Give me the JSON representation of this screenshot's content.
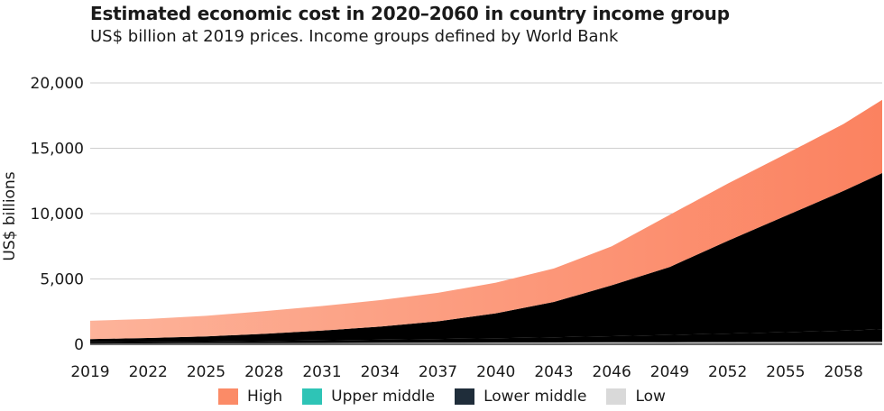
{
  "title": "Estimated economic cost in 2020–2060 in country income group",
  "subtitle": "US$ billion at 2019 prices. Income groups defined by World Bank",
  "chart_data": {
    "type": "area",
    "stacked": true,
    "ylabel": "US$ billions",
    "xlabel": "",
    "ylim": [
      0,
      20000
    ],
    "xlim": [
      2019,
      2060
    ],
    "yticks": [
      0,
      5000,
      10000,
      15000,
      20000
    ],
    "ytick_labels": [
      "0",
      "5,000",
      "10,000",
      "15,000",
      "20,000"
    ],
    "xticks": [
      2019,
      2022,
      2025,
      2028,
      2031,
      2034,
      2037,
      2040,
      2043,
      2046,
      2049,
      2052,
      2055,
      2058
    ],
    "grid": "horizontal",
    "legend_position": "bottom",
    "x": [
      2019,
      2022,
      2025,
      2028,
      2031,
      2034,
      2037,
      2040,
      2043,
      2046,
      2049,
      2052,
      2055,
      2058,
      2060
    ],
    "series": [
      {
        "name": "Low",
        "color": "#d9d9d9",
        "values": [
          60,
          70,
          80,
          90,
          100,
          110,
          120,
          130,
          140,
          150,
          160,
          170,
          180,
          190,
          200
        ]
      },
      {
        "name": "Lower middle",
        "color": "#1f2d3a",
        "values": [
          90,
          110,
          130,
          160,
          200,
          240,
          290,
          340,
          400,
          470,
          560,
          650,
          750,
          850,
          950
        ]
      },
      {
        "name": "Upper middle",
        "color": "#2ec4b6",
        "values": [
          250,
          300,
          400,
          550,
          750,
          1000,
          1350,
          1900,
          2700,
          3900,
          5200,
          7100,
          8900,
          10700,
          11950
        ]
      },
      {
        "name": "High",
        "color": "#fb8b67",
        "values": [
          1400,
          1460,
          1570,
          1740,
          1880,
          2030,
          2180,
          2350,
          2560,
          2980,
          3980,
          4380,
          4720,
          5120,
          5600
        ]
      }
    ]
  },
  "legend": [
    {
      "label": "High",
      "color": "#fb8b67"
    },
    {
      "label": "Upper middle",
      "color": "#2ec4b6"
    },
    {
      "label": "Lower middle",
      "color": "#1f2d3a"
    },
    {
      "label": "Low",
      "color": "#d9d9d9"
    }
  ]
}
